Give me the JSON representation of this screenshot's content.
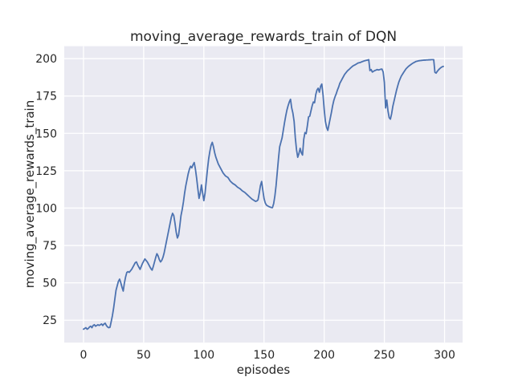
{
  "figure": {
    "title": "moving_average_rewards_train of DQN",
    "xlabel": "episodes",
    "ylabel": "moving_average_rewards_train"
  },
  "chart_data": {
    "type": "line",
    "title": "moving_average_rewards_train of DQN",
    "xlabel": "episodes",
    "ylabel": "moving_average_rewards_train",
    "x_ticks": [
      0,
      50,
      100,
      150,
      200,
      250,
      300
    ],
    "y_ticks": [
      25,
      50,
      75,
      100,
      125,
      150,
      175,
      200
    ],
    "xlim": [
      -16,
      315
    ],
    "ylim": [
      10,
      208.3
    ],
    "grid": true,
    "legend_position": "none",
    "style": {
      "fig_bg": "#ffffff",
      "axes_bg": "#eaeaf2",
      "grid_color": "#ffffff",
      "line_color": "#4c72b0",
      "text_color": "#262626"
    },
    "series": [
      {
        "name": "moving_average_rewards_train",
        "points": [
          [
            0,
            19
          ],
          [
            1,
            19.5
          ],
          [
            2,
            20
          ],
          [
            3,
            19
          ],
          [
            4,
            19.5
          ],
          [
            5,
            20.5
          ],
          [
            6,
            21
          ],
          [
            7,
            20
          ],
          [
            8,
            21.5
          ],
          [
            9,
            22
          ],
          [
            10,
            21
          ],
          [
            11,
            21.5
          ],
          [
            12,
            22
          ],
          [
            13,
            21.5
          ],
          [
            14,
            22
          ],
          [
            15,
            22.5
          ],
          [
            16,
            21.5
          ],
          [
            17,
            22.5
          ],
          [
            18,
            23
          ],
          [
            19,
            21.5
          ],
          [
            20,
            20.5
          ],
          [
            21,
            20
          ],
          [
            22,
            20.3
          ],
          [
            23,
            24
          ],
          [
            24,
            28
          ],
          [
            25,
            33
          ],
          [
            26,
            39
          ],
          [
            27,
            45
          ],
          [
            28,
            48
          ],
          [
            29,
            51
          ],
          [
            30,
            52.5
          ],
          [
            31,
            50
          ],
          [
            32,
            47
          ],
          [
            33,
            44.5
          ],
          [
            34,
            50
          ],
          [
            35,
            54
          ],
          [
            36,
            57
          ],
          [
            37,
            57.5
          ],
          [
            38,
            57
          ],
          [
            39,
            58
          ],
          [
            40,
            59
          ],
          [
            41,
            60.5
          ],
          [
            42,
            62
          ],
          [
            43,
            63.5
          ],
          [
            44,
            64
          ],
          [
            45,
            62
          ],
          [
            46,
            60.5
          ],
          [
            47,
            59
          ],
          [
            48,
            61
          ],
          [
            49,
            63
          ],
          [
            50,
            64.5
          ],
          [
            51,
            66
          ],
          [
            52,
            65
          ],
          [
            53,
            64
          ],
          [
            54,
            62.5
          ],
          [
            55,
            61
          ],
          [
            56,
            59.5
          ],
          [
            57,
            58.5
          ],
          [
            58,
            61
          ],
          [
            59,
            64
          ],
          [
            60,
            67
          ],
          [
            61,
            69.5
          ],
          [
            62,
            68
          ],
          [
            63,
            65.5
          ],
          [
            64,
            64
          ],
          [
            65,
            65
          ],
          [
            66,
            67
          ],
          [
            67,
            70
          ],
          [
            68,
            74
          ],
          [
            69,
            78
          ],
          [
            70,
            82
          ],
          [
            71,
            86
          ],
          [
            72,
            90
          ],
          [
            73,
            94
          ],
          [
            74,
            96.5
          ],
          [
            75,
            95
          ],
          [
            76,
            90
          ],
          [
            77,
            84
          ],
          [
            78,
            80
          ],
          [
            79,
            82
          ],
          [
            80,
            88
          ],
          [
            81,
            95
          ],
          [
            82,
            99
          ],
          [
            83,
            104
          ],
          [
            84,
            110
          ],
          [
            85,
            115
          ],
          [
            86,
            119
          ],
          [
            87,
            123
          ],
          [
            88,
            126
          ],
          [
            89,
            128
          ],
          [
            90,
            127
          ],
          [
            91,
            129
          ],
          [
            92,
            130.5
          ],
          [
            93,
            126
          ],
          [
            94,
            120
          ],
          [
            95,
            113
          ],
          [
            96,
            106.5
          ],
          [
            97,
            110
          ],
          [
            98,
            115.5
          ],
          [
            99,
            110
          ],
          [
            100,
            105
          ],
          [
            101,
            110
          ],
          [
            102,
            118
          ],
          [
            103,
            126
          ],
          [
            104,
            133
          ],
          [
            105,
            138
          ],
          [
            106,
            142
          ],
          [
            107,
            144
          ],
          [
            108,
            141
          ],
          [
            109,
            137
          ],
          [
            110,
            134
          ],
          [
            112,
            129.5
          ],
          [
            114,
            126.5
          ],
          [
            116,
            123.5
          ],
          [
            118,
            121.5
          ],
          [
            120,
            120.5
          ],
          [
            122,
            118
          ],
          [
            124,
            116.5
          ],
          [
            126,
            115.5
          ],
          [
            128,
            114
          ],
          [
            130,
            113
          ],
          [
            132,
            111.5
          ],
          [
            134,
            110.5
          ],
          [
            136,
            109
          ],
          [
            138,
            107.5
          ],
          [
            140,
            106
          ],
          [
            142,
            105
          ],
          [
            143,
            104.5
          ],
          [
            144,
            104.8
          ],
          [
            145,
            105.5
          ],
          [
            146,
            110
          ],
          [
            147,
            115
          ],
          [
            148,
            117.8
          ],
          [
            149,
            112
          ],
          [
            150,
            106.5
          ],
          [
            151,
            103.5
          ],
          [
            152,
            102
          ],
          [
            153,
            101.5
          ],
          [
            154,
            101
          ],
          [
            155,
            100.7
          ],
          [
            156,
            100.4
          ],
          [
            157,
            100.3
          ],
          [
            158,
            103
          ],
          [
            159,
            108
          ],
          [
            160,
            115
          ],
          [
            161,
            124
          ],
          [
            162,
            133
          ],
          [
            163,
            141
          ],
          [
            164,
            144
          ],
          [
            165,
            147
          ],
          [
            166,
            152
          ],
          [
            167,
            157
          ],
          [
            168,
            161.5
          ],
          [
            169,
            165.5
          ],
          [
            170,
            168.5
          ],
          [
            171,
            171
          ],
          [
            172,
            172.8
          ],
          [
            173,
            167
          ],
          [
            174,
            163.5
          ],
          [
            175,
            158
          ],
          [
            176,
            147
          ],
          [
            177,
            139
          ],
          [
            178,
            134
          ],
          [
            179,
            136.5
          ],
          [
            180,
            140
          ],
          [
            181,
            137
          ],
          [
            182,
            135.5
          ],
          [
            183,
            146
          ],
          [
            184,
            150.5
          ],
          [
            185,
            149.8
          ],
          [
            186,
            155
          ],
          [
            187,
            161
          ],
          [
            188,
            161.5
          ],
          [
            189,
            165
          ],
          [
            190,
            168.5
          ],
          [
            191,
            171
          ],
          [
            192,
            170.5
          ],
          [
            193,
            176
          ],
          [
            194,
            179
          ],
          [
            195,
            180.2
          ],
          [
            196,
            177.5
          ],
          [
            197,
            181.5
          ],
          [
            198,
            183
          ],
          [
            199,
            176
          ],
          [
            200,
            166
          ],
          [
            201,
            158
          ],
          [
            202,
            154
          ],
          [
            203,
            152
          ],
          [
            204,
            156
          ],
          [
            205,
            160
          ],
          [
            206,
            164
          ],
          [
            207,
            168.5
          ],
          [
            208,
            172
          ],
          [
            209,
            174.5
          ],
          [
            210,
            176.5
          ],
          [
            211,
            179
          ],
          [
            212,
            181
          ],
          [
            213,
            183.5
          ],
          [
            214,
            185
          ],
          [
            215,
            186.5
          ],
          [
            216,
            188
          ],
          [
            217,
            189.5
          ],
          [
            218,
            190.5
          ],
          [
            219,
            191.5
          ],
          [
            220,
            192.3
          ],
          [
            221,
            193
          ],
          [
            222,
            193.8
          ],
          [
            223,
            194.5
          ],
          [
            224,
            195.2
          ],
          [
            225,
            195.6
          ],
          [
            226,
            196
          ],
          [
            227,
            196.5
          ],
          [
            228,
            197
          ],
          [
            229,
            197.2
          ],
          [
            230,
            197.4
          ],
          [
            231,
            197.8
          ],
          [
            232,
            198.1
          ],
          [
            233,
            198.4
          ],
          [
            234,
            198.6
          ],
          [
            235,
            198.8
          ],
          [
            236,
            199
          ],
          [
            237,
            199.3
          ],
          [
            238,
            192
          ],
          [
            239,
            192.7
          ],
          [
            240,
            191
          ],
          [
            241,
            191.5
          ],
          [
            242,
            192
          ],
          [
            243,
            192.3
          ],
          [
            244,
            192.7
          ],
          [
            245,
            192.4
          ],
          [
            246,
            192.6
          ],
          [
            247,
            192.9
          ],
          [
            248,
            193
          ],
          [
            249,
            191
          ],
          [
            250,
            184
          ],
          [
            251,
            167
          ],
          [
            252,
            172.3
          ],
          [
            253,
            165
          ],
          [
            254,
            160.5
          ],
          [
            255,
            159.5
          ],
          [
            256,
            163
          ],
          [
            257,
            168
          ],
          [
            258,
            171.5
          ],
          [
            259,
            175
          ],
          [
            260,
            178.5
          ],
          [
            261,
            181.5
          ],
          [
            262,
            184.3
          ],
          [
            263,
            186.3
          ],
          [
            264,
            188.2
          ],
          [
            265,
            189.5
          ],
          [
            266,
            190.8
          ],
          [
            267,
            192
          ],
          [
            268,
            193.2
          ],
          [
            269,
            194
          ],
          [
            270,
            194.8
          ],
          [
            271,
            195.4
          ],
          [
            272,
            196
          ],
          [
            273,
            196.6
          ],
          [
            274,
            197.1
          ],
          [
            275,
            197.5
          ],
          [
            276,
            198
          ],
          [
            277,
            198.2
          ],
          [
            278,
            198.4
          ],
          [
            279,
            198.6
          ],
          [
            280,
            198.7
          ],
          [
            281,
            198.8
          ],
          [
            282,
            198.9
          ],
          [
            283,
            199
          ],
          [
            284,
            199
          ],
          [
            285,
            199.1
          ],
          [
            286,
            199.1
          ],
          [
            287,
            199.2
          ],
          [
            288,
            199.2
          ],
          [
            289,
            199.3
          ],
          [
            290,
            199.3
          ],
          [
            291,
            199.3
          ],
          [
            292,
            190.8
          ],
          [
            293,
            190.3
          ],
          [
            294,
            191.5
          ],
          [
            295,
            192.5
          ],
          [
            296,
            193.3
          ],
          [
            297,
            194
          ],
          [
            298,
            194.5
          ],
          [
            299,
            194.8
          ]
        ]
      }
    ]
  }
}
